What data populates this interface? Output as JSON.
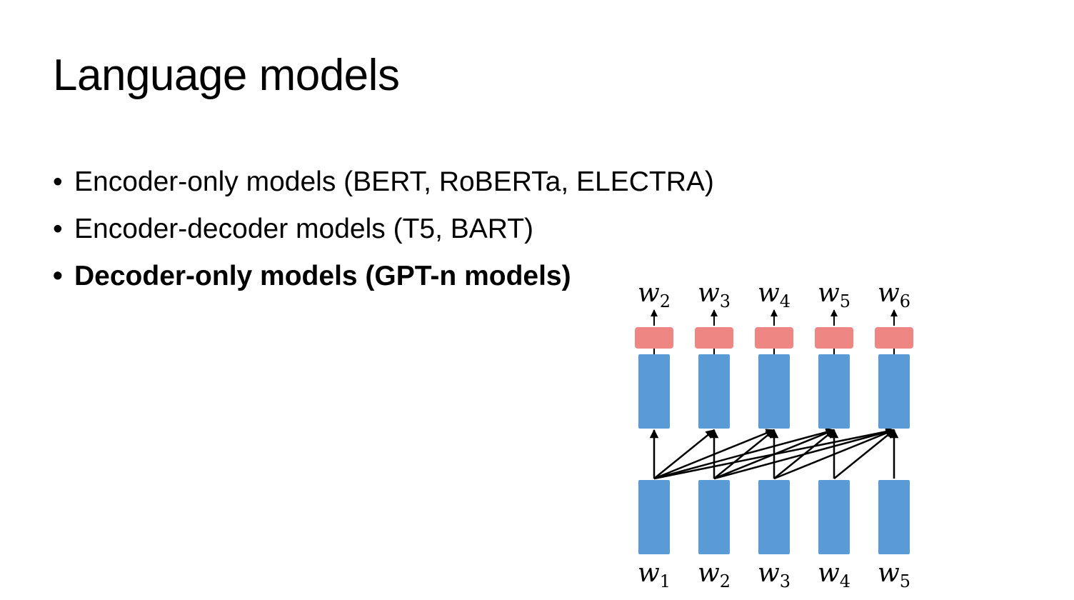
{
  "slide": {
    "title": "Language models",
    "bullets": [
      {
        "text": "Encoder-only models (BERT, RoBERTa, ELECTRA)",
        "bold": false
      },
      {
        "text": "Encoder-decoder models (T5, BART)",
        "bold": false
      },
      {
        "text": "Decoder-only models (GPT-n models)",
        "bold": true
      }
    ],
    "bullet_symbol": "•"
  },
  "diagram": {
    "output_tokens": [
      {
        "base": "w",
        "sub": "2"
      },
      {
        "base": "w",
        "sub": "3"
      },
      {
        "base": "w",
        "sub": "4"
      },
      {
        "base": "w",
        "sub": "5"
      },
      {
        "base": "w",
        "sub": "6"
      }
    ],
    "input_tokens": [
      {
        "base": "w",
        "sub": "1"
      },
      {
        "base": "w",
        "sub": "2"
      },
      {
        "base": "w",
        "sub": "3"
      },
      {
        "base": "w",
        "sub": "4"
      },
      {
        "base": "w",
        "sub": "5"
      }
    ],
    "colors": {
      "block": "#5b9bd5",
      "output_head": "#ee8683",
      "arrow": "#000000"
    },
    "attention": "causal"
  }
}
